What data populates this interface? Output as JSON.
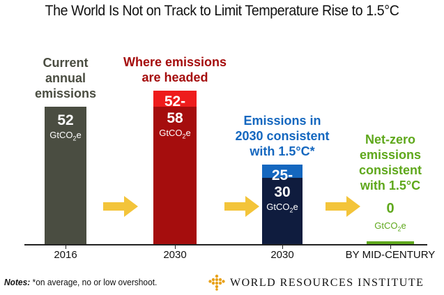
{
  "title": "The World Is Not on Track to Limit Temperature Rise to 1.5°C",
  "colors": {
    "current": "#4a4d41",
    "headed_low": "#a50d0d",
    "headed_high": "#ee1c1c",
    "consistent_low": "#0f1c3e",
    "consistent_high": "#1467bf",
    "netzero": "#5fa81c",
    "arrow": "#f3c43a"
  },
  "chart_data": {
    "type": "bar",
    "title": "The World Is Not on Track to Limit Temperature Rise to 1.5°C",
    "unit": "GtCO2e",
    "unit_main": "GtCO",
    "unit_sub": "2",
    "unit_suffix": "e",
    "categories": [
      "2016",
      "2030",
      "2030",
      "BY MID-CENTURY"
    ],
    "bars": [
      {
        "category": "2016",
        "description": [
          "Current",
          "annual",
          "emissions"
        ],
        "low": 52,
        "high": 52,
        "value_label": [
          "52"
        ]
      },
      {
        "category": "2030",
        "description": [
          "Where emissions",
          "are headed"
        ],
        "low": 52,
        "high": 58,
        "value_label": [
          "52-",
          "58"
        ]
      },
      {
        "category": "2030",
        "description": [
          "Emissions in",
          "2030 consistent",
          "with 1.5°C*"
        ],
        "low": 25,
        "high": 30,
        "value_label": [
          "25-",
          "30"
        ]
      },
      {
        "category": "BY MID-CENTURY",
        "description": [
          "Net-zero",
          "emissions",
          "consistent",
          "with 1.5°C"
        ],
        "low": 0,
        "high": 0,
        "value_label": [
          "0"
        ]
      }
    ],
    "ylim": [
      0,
      60
    ],
    "grid": false,
    "legend": "none"
  },
  "notes": {
    "label": "Notes:",
    "text": " *on average, no or low overshoot."
  },
  "source": {
    "organization": "WORLD RESOURCES INSTITUTE"
  }
}
